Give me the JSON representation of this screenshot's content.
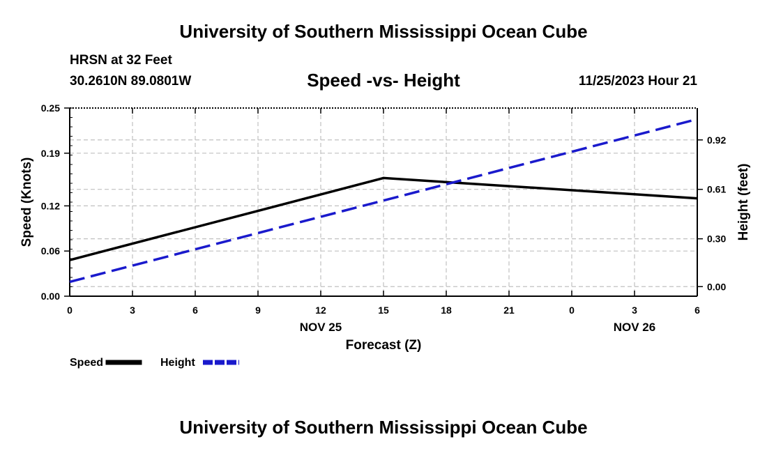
{
  "header": {
    "title": "University of Southern Mississippi Ocean Cube",
    "station": "HRSN at 32 Feet",
    "coords": "30.2610N  89.0801W",
    "date": "11/25/2023 Hour 21",
    "footer_title": "University of Southern Mississippi Ocean Cube"
  },
  "chart_data": {
    "type": "line",
    "title": "Speed -vs- Height",
    "xlabel": "Forecast (Z)",
    "ylabel": "Speed (Knots)",
    "y2label": "Height (feet)",
    "x": [
      0,
      3,
      6,
      9,
      12,
      15,
      18,
      21,
      24,
      27,
      30
    ],
    "x_tick_labels": [
      "0",
      "3",
      "6",
      "9",
      "12",
      "15",
      "18",
      "21",
      "0",
      "3",
      "6"
    ],
    "date_labels": [
      {
        "x": 12,
        "label": "NOV 25"
      },
      {
        "x": 27,
        "label": "NOV 26"
      }
    ],
    "xlim": [
      0,
      30
    ],
    "ylim": [
      0,
      0.25
    ],
    "y_ticks": [
      0,
      0.06,
      0.12,
      0.19,
      0.25
    ],
    "y_tick_labels": [
      "0.00",
      "0.06",
      "0.12",
      "0.19",
      "0.25"
    ],
    "y2lim": [
      -0.06,
      1.12
    ],
    "y2_ticks": [
      0,
      0.3,
      0.61,
      0.92
    ],
    "y2_tick_labels": [
      "0.00",
      "0.30",
      "0.61",
      "0.92"
    ],
    "grid": true,
    "series": [
      {
        "name": "Speed",
        "axis": "left",
        "color": "#000000",
        "style": "solid",
        "x": [
          0,
          15,
          30
        ],
        "values": [
          0.048,
          0.157,
          0.13
        ]
      },
      {
        "name": "Height",
        "axis": "right",
        "color": "#1a1acc",
        "style": "dashed",
        "x": [
          0,
          30
        ],
        "values": [
          0.03,
          1.05
        ]
      }
    ],
    "legend": "bottom-left"
  }
}
